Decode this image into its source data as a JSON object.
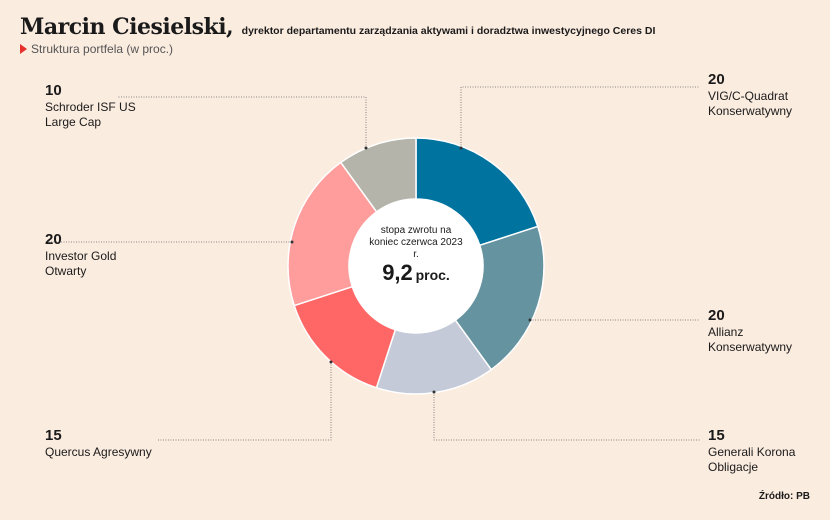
{
  "header": {
    "name": "Marcin Ciesielski,",
    "role": "dyrektor departamentu zarządzania aktywami i doradztwa inwestycyjnego Ceres DI",
    "subtitle": "Struktura portfela (w proc.)"
  },
  "center": {
    "caption": "stopa zwrotu na koniec czerwca 2023 r.",
    "value": "9,2",
    "unit": "proc."
  },
  "source": "Źródło: PB",
  "chart_data": {
    "type": "pie",
    "title": "Struktura portfela (w proc.)",
    "slices": [
      {
        "label": "VIG/C-Quadrat Konserwatywny",
        "value": 20,
        "value_label": "20",
        "color": "#00739f"
      },
      {
        "label": "Allianz Konserwatywny",
        "value": 20,
        "value_label": "20",
        "color": "#6593a0"
      },
      {
        "label": "Generali Korona Obligacje",
        "value": 15,
        "value_label": "15",
        "color": "#c5cad8"
      },
      {
        "label": "Quercus Agresywny",
        "value": 15,
        "value_label": "15",
        "color": "#ff6666"
      },
      {
        "label": "Investor Gold Otwarty",
        "value": 20,
        "value_label": "20",
        "color": "#ff9c9c"
      },
      {
        "label": "Schroder ISF US Large Cap",
        "value": 10,
        "value_label": "10",
        "color": "#b4b4aa"
      }
    ]
  }
}
